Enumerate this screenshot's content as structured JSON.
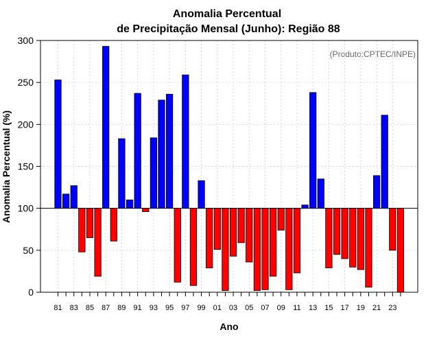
{
  "chart_data": {
    "type": "bar",
    "title": "Anomalia Percentual",
    "subtitle": "de Precipitação Mensal (Junho): Região 88",
    "xlabel": "Ano",
    "ylabel": "Anomalia Percentual (%)",
    "credit": "(Produto:CPTEC/INPE)",
    "baseline": 100,
    "ylim": [
      0,
      300
    ],
    "yticks": [
      0,
      50,
      100,
      150,
      200,
      250,
      300
    ],
    "grid": true,
    "colors": {
      "above": "#0000ff",
      "below": "#ff0000"
    },
    "categories": [
      "81",
      "82",
      "83",
      "84",
      "85",
      "86",
      "87",
      "88",
      "89",
      "90",
      "91",
      "92",
      "93",
      "94",
      "95",
      "96",
      "97",
      "98",
      "99",
      "00",
      "01",
      "02",
      "03",
      "04",
      "05",
      "06",
      "07",
      "08",
      "09",
      "10",
      "11",
      "12",
      "13",
      "14",
      "15",
      "16",
      "17",
      "18",
      "19",
      "20",
      "21",
      "22",
      "23",
      "24"
    ],
    "tick_labels": [
      "81",
      "83",
      "85",
      "87",
      "89",
      "91",
      "93",
      "95",
      "97",
      "99",
      "01",
      "03",
      "05",
      "07",
      "09",
      "11",
      "13",
      "15",
      "17",
      "19",
      "21",
      "23"
    ],
    "values": [
      253,
      117,
      127,
      48,
      65,
      19,
      293,
      61,
      183,
      110,
      237,
      96,
      184,
      229,
      236,
      12,
      259,
      8,
      133,
      29,
      51,
      2,
      43,
      59,
      36,
      2,
      3,
      19,
      74,
      3,
      23,
      104,
      238,
      135,
      29,
      45,
      40,
      30,
      27,
      6,
      139,
      211,
      50,
      0
    ]
  }
}
